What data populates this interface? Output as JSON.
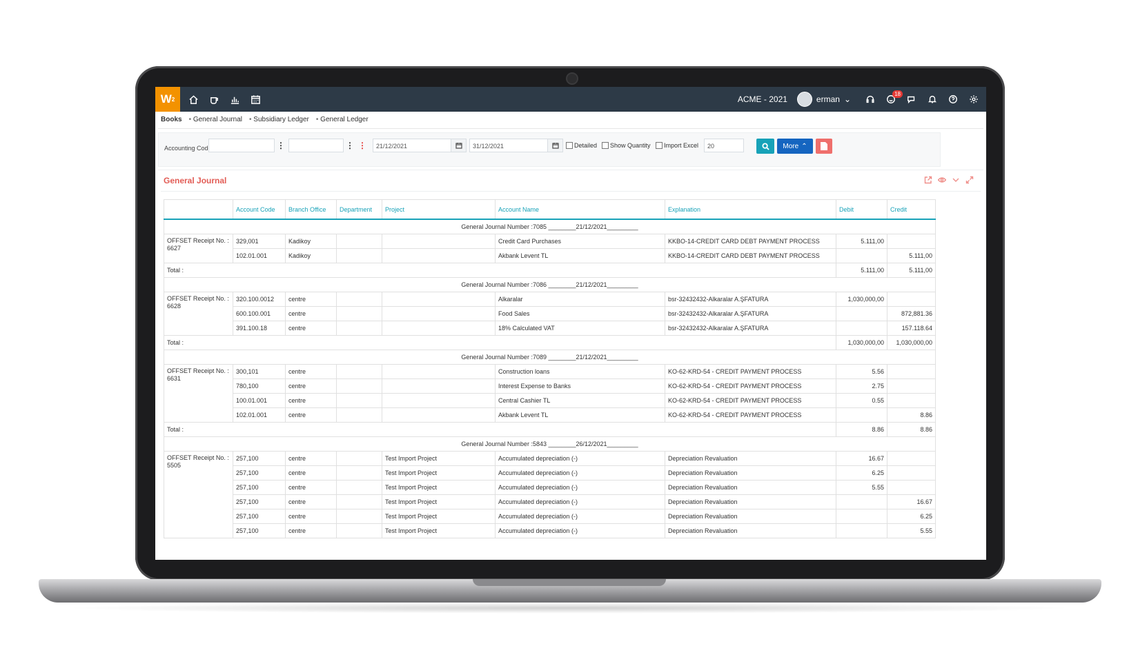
{
  "app": {
    "logo_text": "W"
  },
  "topbar": {
    "nav_icons": [
      "home-icon",
      "coffee-icon",
      "chart-icon",
      "calendar-icon"
    ],
    "company": "ACME - 2021",
    "user": "erman",
    "notification_count": "18"
  },
  "breadcrumb": {
    "active": "Books",
    "items": [
      "General Journal",
      "Subsidiary Ledger",
      "General Ledger"
    ]
  },
  "filters": {
    "accounting_code_label": "Accounting Code",
    "date_from": "21/12/2021",
    "date_to": "31/12/2021",
    "detailed_label": "Detailed",
    "show_quantity_label": "Show Quantity",
    "import_excel_label": "Import Excel",
    "page_size": "20",
    "more_label": "More"
  },
  "panel": {
    "title": "General Journal"
  },
  "table": {
    "headers": [
      "",
      "Account Code",
      "Branch Office",
      "Department",
      "Project",
      "Account Name",
      "Explanation",
      "Debit",
      "Credit"
    ],
    "total_label": "Total :",
    "groups": [
      {
        "heading": "General Journal Number :7085        ________21/12/2021_________",
        "receipt": "OFFSET Receipt No. : 6627",
        "rows": [
          {
            "code": "329,001",
            "branch": "Kadikoy",
            "dept": "",
            "project": "",
            "name": "Credit Card Purchases",
            "explanation": "KKBO-14-CREDIT CARD DEBT PAYMENT PROCESS",
            "debit": "5.111,00",
            "credit": ""
          },
          {
            "code": "102.01.001",
            "branch": "Kadikoy",
            "dept": "",
            "project": "",
            "name": "Akbank Levent TL",
            "explanation": "KKBO-14-CREDIT CARD DEBT PAYMENT PROCESS",
            "debit": "",
            "credit": "5.111,00"
          }
        ],
        "total_debit": "5.111,00",
        "total_credit": "5.111,00"
      },
      {
        "heading": "General Journal Number :7086        ________21/12/2021_________",
        "receipt": "OFFSET Receipt No. : 6628",
        "rows": [
          {
            "code": "320.100.0012",
            "branch": "centre",
            "dept": "",
            "project": "",
            "name": "Alkaralar",
            "explanation": "bsr-32432432-Alkaralar A.ŞFATURA",
            "debit": "1,030,000,00",
            "credit": ""
          },
          {
            "code": "600.100.001",
            "branch": "centre",
            "dept": "",
            "project": "",
            "name": "Food Sales",
            "explanation": "bsr-32432432-Alkaralar A.ŞFATURA",
            "debit": "",
            "credit": "872,881.36"
          },
          {
            "code": "391.100.18",
            "branch": "centre",
            "dept": "",
            "project": "",
            "name": "18% Calculated VAT",
            "explanation": "bsr-32432432-Alkaralar A.ŞFATURA",
            "debit": "",
            "credit": "157.118.64"
          }
        ],
        "total_debit": "1,030,000,00",
        "total_credit": "1,030,000,00"
      },
      {
        "heading": "General Journal Number :7089        ________21/12/2021_________",
        "receipt": "OFFSET Receipt No. : 6631",
        "rows": [
          {
            "code": "300,101",
            "branch": "centre",
            "dept": "",
            "project": "",
            "name": "Construction loans",
            "explanation": "KO-62-KRD-54 - CREDIT PAYMENT PROCESS",
            "debit": "5.56",
            "credit": ""
          },
          {
            "code": "780,100",
            "branch": "centre",
            "dept": "",
            "project": "",
            "name": "Interest Expense to Banks",
            "explanation": "KO-62-KRD-54 - CREDIT PAYMENT PROCESS",
            "debit": "2.75",
            "credit": ""
          },
          {
            "code": "100.01.001",
            "branch": "centre",
            "dept": "",
            "project": "",
            "name": "Central Cashier TL",
            "explanation": "KO-62-KRD-54 - CREDIT PAYMENT PROCESS",
            "debit": "0.55",
            "credit": ""
          },
          {
            "code": "102.01.001",
            "branch": "centre",
            "dept": "",
            "project": "",
            "name": "Akbank Levent TL",
            "explanation": "KO-62-KRD-54 - CREDIT PAYMENT PROCESS",
            "debit": "",
            "credit": "8.86"
          }
        ],
        "total_debit": "8.86",
        "total_credit": "8.86"
      },
      {
        "heading": "General Journal Number :5843        ________26/12/2021_________",
        "receipt": "OFFSET Receipt No. : 5505",
        "rows": [
          {
            "code": "257,100",
            "branch": "centre",
            "dept": "",
            "project": "Test Import Project",
            "name": "Accumulated depreciation (-)",
            "explanation": "Depreciation Revaluation",
            "debit": "16.67",
            "credit": ""
          },
          {
            "code": "257,100",
            "branch": "centre",
            "dept": "",
            "project": "Test Import Project",
            "name": "Accumulated depreciation (-)",
            "explanation": "Depreciation Revaluation",
            "debit": "6.25",
            "credit": ""
          },
          {
            "code": "257,100",
            "branch": "centre",
            "dept": "",
            "project": "Test Import Project",
            "name": "Accumulated depreciation (-)",
            "explanation": "Depreciation Revaluation",
            "debit": "5.55",
            "credit": ""
          },
          {
            "code": "257,100",
            "branch": "centre",
            "dept": "",
            "project": "Test Import Project",
            "name": "Accumulated depreciation (-)",
            "explanation": "Depreciation Revaluation",
            "debit": "",
            "credit": "16.67"
          },
          {
            "code": "257,100",
            "branch": "centre",
            "dept": "",
            "project": "Test Import Project",
            "name": "Accumulated depreciation (-)",
            "explanation": "Depreciation Revaluation",
            "debit": "",
            "credit": "6.25"
          },
          {
            "code": "257,100",
            "branch": "centre",
            "dept": "",
            "project": "Test Import Project",
            "name": "Accumulated depreciation (-)",
            "explanation": "Depreciation Revaluation",
            "debit": "",
            "credit": "5.55"
          }
        ],
        "total_debit": "",
        "total_credit": ""
      }
    ]
  }
}
